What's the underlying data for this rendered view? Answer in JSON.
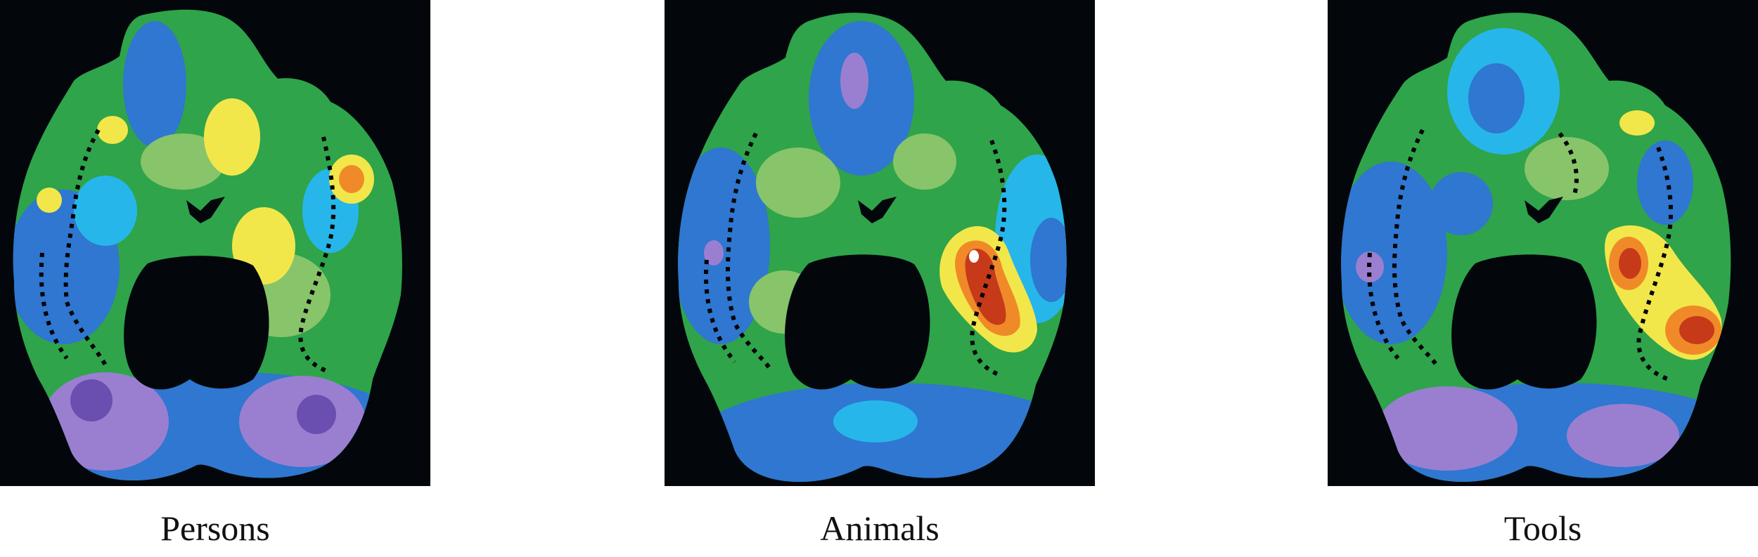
{
  "figure": {
    "panels": [
      {
        "label": "Persons"
      },
      {
        "label": "Animals"
      },
      {
        "label": "Tools"
      }
    ],
    "colors": {
      "background": "#03070c",
      "violet": "#9a7fd1",
      "deep_violet": "#6a4fb0",
      "blue": "#2f77d0",
      "cyan": "#27b6ea",
      "green": "#2fa44a",
      "light_green": "#88c46a",
      "yellow": "#f2e74a",
      "orange": "#f08a28",
      "red": "#c63a1a"
    }
  }
}
